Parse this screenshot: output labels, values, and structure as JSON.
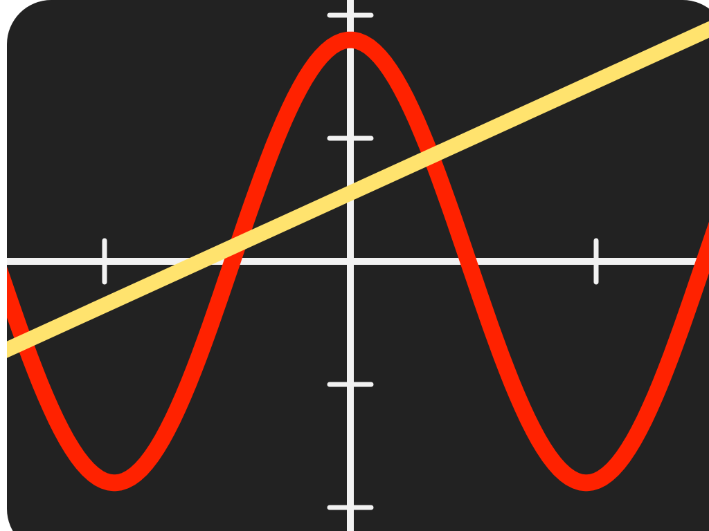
{
  "icon": {
    "name": "graphing-calculator-app-icon",
    "background_color": "#222222",
    "axis_color": "#f2f2f2"
  },
  "chart_data": {
    "type": "line",
    "xlim": [
      -3.5,
      3.5
    ],
    "ylim": [
      -2.1,
      2.1
    ],
    "x_ticks": [
      -2.5,
      2.5
    ],
    "y_ticks": [
      -1,
      1,
      2,
      -2
    ],
    "grid": false,
    "series": [
      {
        "function": "cos",
        "amplitude": 1.8,
        "period": 4.8,
        "color": "#ff2200",
        "samples": {
          "x_min": -3.5,
          "x_max": 3.5,
          "count": 141
        }
      },
      {
        "function": "linear",
        "points": [
          [
            -3.5,
            -0.72
          ],
          [
            3.5,
            1.83
          ]
        ],
        "color": "#ffe36e"
      }
    ]
  }
}
